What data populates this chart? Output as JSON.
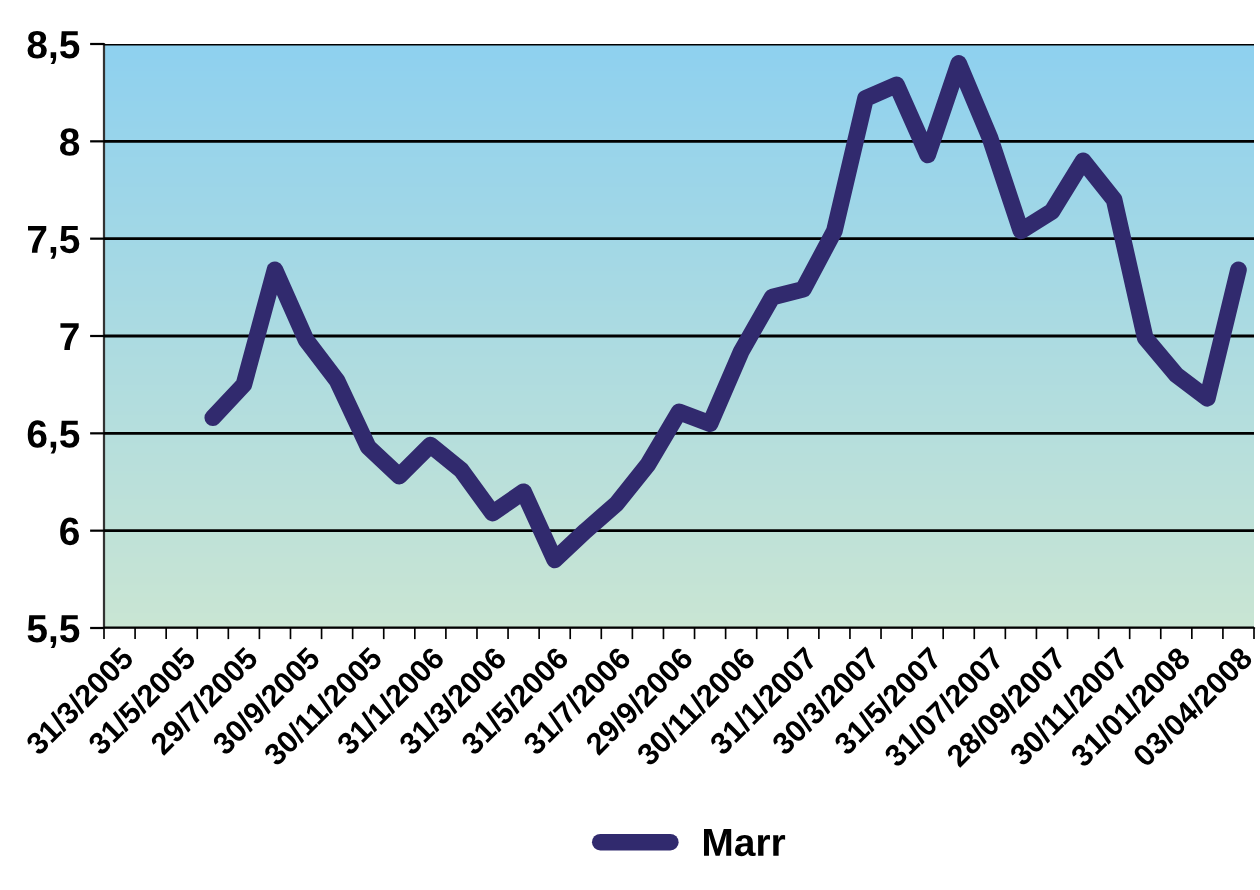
{
  "chart_data": {
    "type": "line",
    "categories": [
      "31/3/2005",
      null,
      "31/5/2005",
      null,
      "29/7/2005",
      null,
      "30/9/2005",
      null,
      "30/11/2005",
      null,
      "31/1/2006",
      null,
      "31/3/2006",
      null,
      "31/5/2006",
      null,
      "31/7/2006",
      null,
      "29/9/2006",
      null,
      "30/11/2006",
      null,
      "31/1/2007",
      null,
      "30/3/2007",
      null,
      "31/5/2007",
      null,
      "31/07/2007",
      null,
      "28/09/2007",
      null,
      "30/11/2007",
      null,
      "31/01/2008",
      null,
      "03/04/2008"
    ],
    "series": [
      {
        "name": "Marr",
        "color": "#312a6e",
        "values": [
          null,
          null,
          null,
          6.58,
          6.75,
          7.34,
          6.98,
          6.77,
          6.43,
          6.28,
          6.44,
          6.31,
          6.09,
          6.2,
          5.85,
          6.0,
          6.14,
          6.34,
          6.61,
          6.55,
          6.92,
          7.2,
          7.24,
          7.54,
          8.22,
          8.29,
          7.93,
          8.4,
          8.02,
          7.54,
          7.64,
          7.9,
          7.7,
          6.99,
          6.8,
          6.68,
          7.34
        ]
      }
    ],
    "ylim": [
      5.5,
      8.5
    ],
    "yticks": [
      {
        "value": 5.5,
        "label": "5,5"
      },
      6,
      {
        "value": 6.5,
        "label": "6,5"
      },
      7,
      {
        "value": 7.5,
        "label": "7,5"
      },
      8,
      {
        "value": 8.5,
        "label": "8,5"
      }
    ],
    "grid": "y",
    "legend": "bottom",
    "marker": "none",
    "line_style": "solid"
  }
}
